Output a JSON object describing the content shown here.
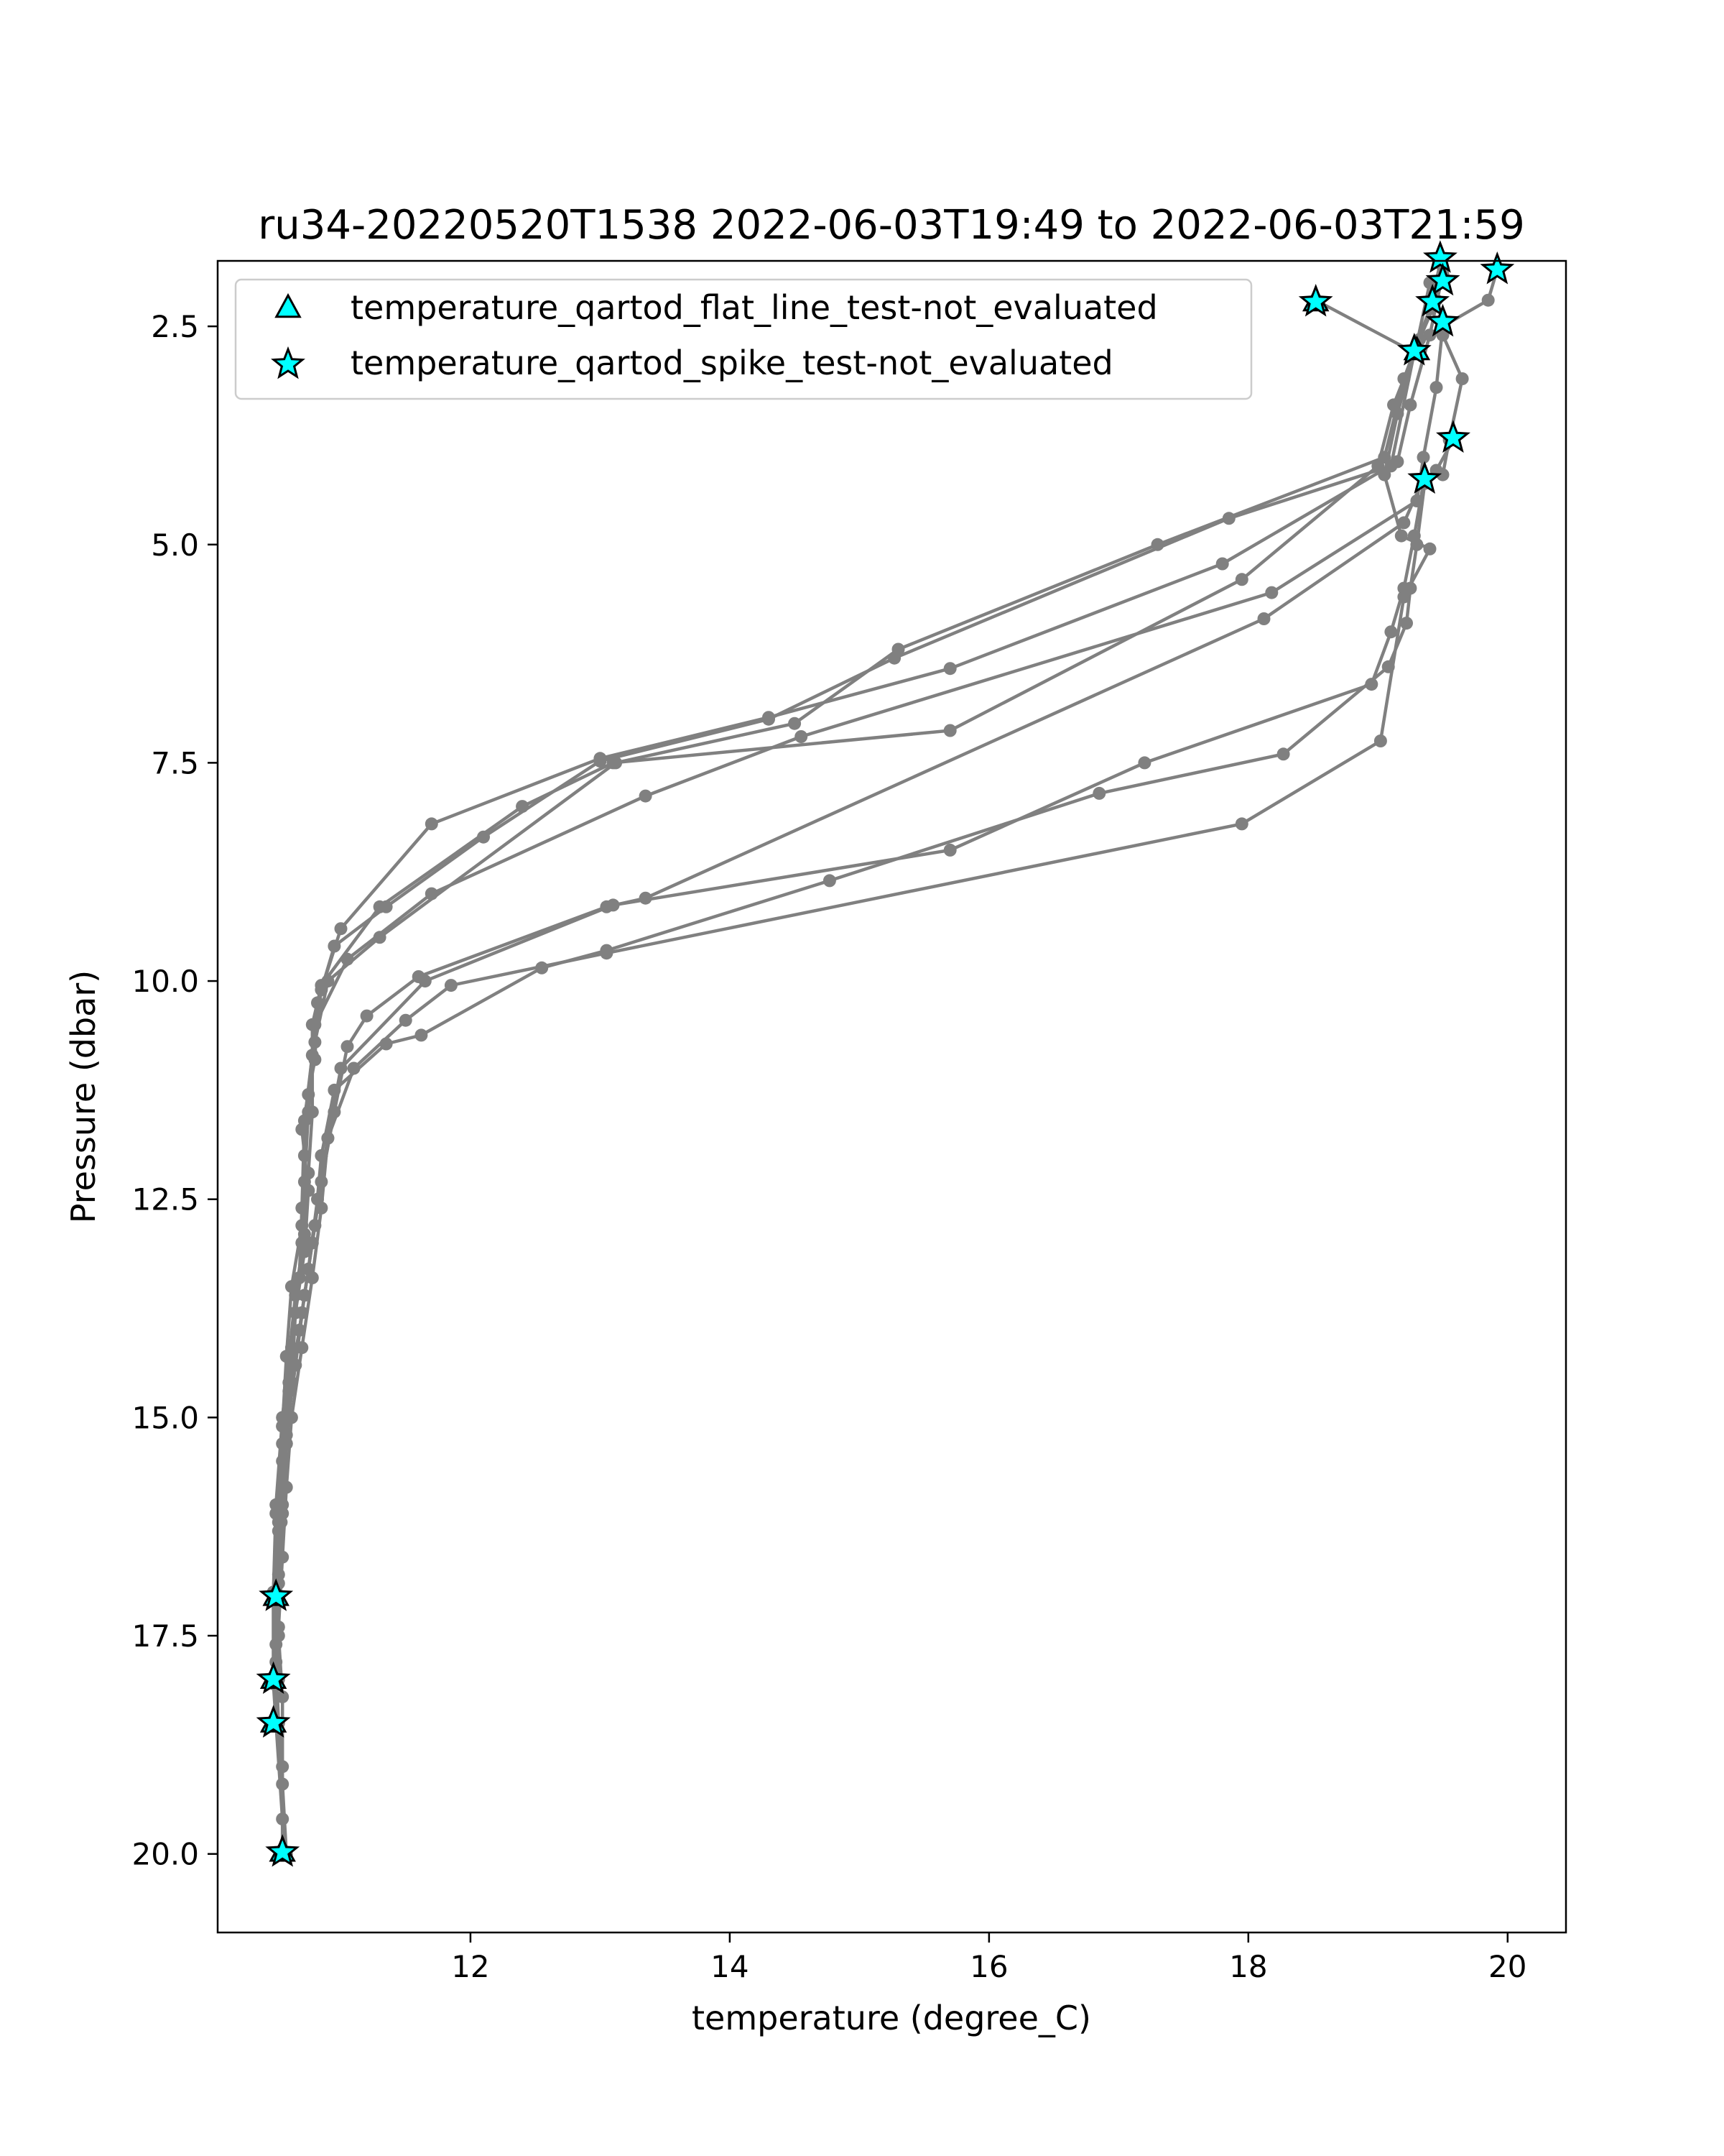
{
  "chart_data": {
    "type": "line",
    "title": "ru34-20220520T1538 2022-06-03T19:49 to 2022-06-03T21:59",
    "xlabel": "temperature (degree_C)",
    "ylabel": "Pressure (dbar)",
    "xlim": [
      10.05,
      20.45
    ],
    "ylim": [
      20.9,
      1.75
    ],
    "y_inverted": true,
    "xticks": [
      "12",
      "14",
      "16",
      "18",
      "20"
    ],
    "xtick_values": [
      12,
      14,
      16,
      18,
      20
    ],
    "yticks": [
      "2.5",
      "5.0",
      "7.5",
      "10.0",
      "12.5",
      "15.0",
      "17.5",
      "20.0"
    ],
    "ytick_values": [
      2.5,
      5.0,
      7.5,
      10.0,
      12.5,
      15.0,
      17.5,
      20.0
    ],
    "grid": false,
    "legend_position": "upper-left",
    "legend": [
      {
        "label": "temperature_qartod_flat_line_test-not_evaluated",
        "marker": "triangle"
      },
      {
        "label": "temperature_qartod_spike_test-not_evaluated",
        "marker": "star"
      }
    ],
    "colors": {
      "line": "#808080",
      "marker_fill": "#00FFFF",
      "marker_edge": "#000000"
    },
    "series": [
      {
        "values": [
          [
            18.52,
            2.2
          ],
          [
            19.28,
            2.8
          ],
          [
            19.1,
            4.1
          ],
          [
            17.85,
            4.7
          ],
          [
            15.27,
            6.3
          ],
          [
            14.3,
            7.0
          ],
          [
            13.0,
            7.48
          ],
          [
            12.1,
            8.35
          ],
          [
            11.35,
            9.15
          ],
          [
            10.95,
            9.6
          ],
          [
            10.82,
            10.25
          ],
          [
            10.8,
            10.9
          ],
          [
            10.7,
            11.7
          ],
          [
            10.75,
            12.4
          ],
          [
            10.72,
            13.1
          ],
          [
            10.65,
            13.8
          ],
          [
            10.62,
            14.6
          ],
          [
            10.58,
            15.3
          ],
          [
            10.54,
            16.2
          ],
          [
            10.5,
            17.1
          ]
        ]
      },
      {
        "values": [
          [
            19.5,
            1.9
          ],
          [
            19.4,
            2.6
          ],
          [
            19.25,
            3.4
          ],
          [
            19.15,
            4.05
          ],
          [
            17.8,
            5.22
          ],
          [
            15.7,
            6.42
          ],
          [
            14.3,
            6.98
          ],
          [
            13.0,
            7.45
          ],
          [
            11.7,
            8.2
          ],
          [
            11.0,
            9.4
          ],
          [
            10.85,
            10.1
          ],
          [
            10.78,
            10.85
          ],
          [
            10.72,
            11.6
          ],
          [
            10.7,
            12.6
          ],
          [
            10.68,
            13.4
          ],
          [
            10.62,
            14.2
          ],
          [
            10.55,
            15.1
          ],
          [
            10.5,
            16.1
          ],
          [
            10.48,
            17.1
          ],
          [
            10.48,
            18.05
          ]
        ]
      },
      {
        "values": [
          [
            19.48,
            1.72
          ],
          [
            19.45,
            2.2
          ],
          [
            19.32,
            2.65
          ],
          [
            19.12,
            3.4
          ],
          [
            19.0,
            4.1
          ],
          [
            17.95,
            5.4
          ],
          [
            15.7,
            7.13
          ],
          [
            13.1,
            7.5
          ],
          [
            12.4,
            8.0
          ],
          [
            11.3,
            9.15
          ],
          [
            10.85,
            10.05
          ],
          [
            10.78,
            10.5
          ],
          [
            10.78,
            11.5
          ],
          [
            10.75,
            12.2
          ],
          [
            10.72,
            12.9
          ],
          [
            10.65,
            13.6
          ],
          [
            10.6,
            14.3
          ],
          [
            10.55,
            15.0
          ],
          [
            10.5,
            16.0
          ],
          [
            10.48,
            17.0
          ],
          [
            10.48,
            18.0
          ]
        ]
      },
      {
        "values": [
          [
            19.92,
            1.85
          ],
          [
            19.85,
            2.2
          ],
          [
            19.5,
            2.5
          ],
          [
            19.45,
            3.2
          ],
          [
            19.35,
            4.0
          ],
          [
            19.3,
            4.5
          ],
          [
            18.18,
            5.55
          ],
          [
            14.55,
            7.2
          ],
          [
            13.35,
            7.88
          ],
          [
            11.7,
            9.0
          ],
          [
            11.05,
            9.75
          ],
          [
            10.8,
            10.5
          ],
          [
            10.75,
            11.3
          ],
          [
            10.72,
            12.0
          ],
          [
            10.7,
            12.8
          ],
          [
            10.62,
            13.5
          ],
          [
            10.58,
            14.3
          ],
          [
            10.55,
            15.1
          ],
          [
            10.52,
            16.1
          ],
          [
            10.5,
            17.1
          ],
          [
            10.48,
            18.05
          ],
          [
            10.5,
            18.5
          ]
        ]
      },
      {
        "values": [
          [
            19.5,
            2.6
          ],
          [
            19.65,
            3.1
          ],
          [
            19.55,
            3.8
          ],
          [
            19.5,
            4.2
          ],
          [
            19.35,
            4.25
          ],
          [
            19.2,
            4.75
          ],
          [
            18.12,
            5.85
          ],
          [
            13.35,
            9.05
          ],
          [
            13.05,
            9.15
          ],
          [
            11.6,
            9.95
          ],
          [
            11.2,
            10.4
          ],
          [
            11.05,
            10.75
          ],
          [
            10.95,
            11.5
          ],
          [
            10.85,
            12.3
          ],
          [
            10.78,
            13.0
          ],
          [
            10.7,
            13.8
          ],
          [
            10.62,
            14.6
          ],
          [
            10.58,
            15.3
          ],
          [
            10.55,
            16.1
          ],
          [
            10.52,
            16.9
          ],
          [
            10.5,
            17.6
          ],
          [
            10.5,
            18.5
          ],
          [
            10.55,
            19.6
          ],
          [
            10.55,
            20.0
          ]
        ]
      },
      {
        "values": [
          [
            19.58,
            3.8
          ],
          [
            19.45,
            4.15
          ],
          [
            19.35,
            4.3
          ],
          [
            19.28,
            4.9
          ],
          [
            19.2,
            5.5
          ],
          [
            19.1,
            6.0
          ],
          [
            18.95,
            6.6
          ],
          [
            17.2,
            7.5
          ],
          [
            15.7,
            8.5
          ],
          [
            13.1,
            9.13
          ],
          [
            11.65,
            10.0
          ],
          [
            11.0,
            11.0
          ],
          [
            10.9,
            11.8
          ],
          [
            10.82,
            12.5
          ],
          [
            10.75,
            13.3
          ],
          [
            10.68,
            14.0
          ],
          [
            10.6,
            14.7
          ],
          [
            10.55,
            15.5
          ],
          [
            10.52,
            16.3
          ],
          [
            10.5,
            17.1
          ],
          [
            10.5,
            17.8
          ],
          [
            10.52,
            18.5
          ],
          [
            10.55,
            19.2
          ],
          [
            10.58,
            20.0
          ]
        ]
      },
      {
        "values": [
          [
            19.36,
            4.3
          ],
          [
            19.3,
            5.0
          ],
          [
            19.25,
            5.5
          ],
          [
            19.22,
            5.9
          ],
          [
            19.08,
            6.4
          ],
          [
            18.27,
            7.4
          ],
          [
            16.85,
            7.85
          ],
          [
            14.77,
            8.85
          ],
          [
            13.05,
            9.65
          ],
          [
            12.55,
            9.85
          ],
          [
            11.62,
            10.62
          ],
          [
            11.35,
            10.72
          ],
          [
            10.95,
            11.25
          ],
          [
            10.85,
            12.0
          ],
          [
            10.8,
            12.8
          ],
          [
            10.72,
            13.6
          ],
          [
            10.65,
            14.4
          ],
          [
            10.58,
            15.2
          ],
          [
            10.55,
            16.0
          ],
          [
            10.52,
            16.8
          ],
          [
            10.52,
            17.5
          ],
          [
            10.55,
            18.2
          ],
          [
            10.55,
            19.0
          ],
          [
            10.55,
            20.0
          ]
        ]
      },
      {
        "values": [
          [
            19.48,
            1.78
          ],
          [
            19.4,
            2.3
          ],
          [
            19.2,
            3.1
          ],
          [
            19.05,
            4.0
          ],
          [
            17.3,
            5.0
          ],
          [
            15.3,
            6.2
          ],
          [
            14.5,
            7.05
          ],
          [
            13.12,
            7.5
          ],
          [
            11.3,
            9.5
          ],
          [
            10.9,
            10.0
          ],
          [
            10.8,
            10.7
          ],
          [
            10.75,
            11.5
          ],
          [
            10.72,
            12.3
          ],
          [
            10.7,
            13.0
          ],
          [
            10.65,
            13.8
          ],
          [
            10.6,
            14.6
          ],
          [
            10.55,
            15.3
          ],
          [
            10.52,
            16.2
          ],
          [
            10.5,
            17.0
          ]
        ]
      },
      {
        "values": [
          [
            19.4,
            2.0
          ],
          [
            19.3,
            2.7
          ],
          [
            19.15,
            3.5
          ],
          [
            19.05,
            4.2
          ],
          [
            19.18,
            4.9
          ],
          [
            19.4,
            5.05
          ],
          [
            19.2,
            5.6
          ],
          [
            19.02,
            7.25
          ],
          [
            17.95,
            8.2
          ],
          [
            13.05,
            9.68
          ],
          [
            11.85,
            10.05
          ],
          [
            11.5,
            10.45
          ],
          [
            11.1,
            11.0
          ],
          [
            10.9,
            11.8
          ],
          [
            10.85,
            12.6
          ],
          [
            10.78,
            13.4
          ],
          [
            10.7,
            14.2
          ],
          [
            10.62,
            15.0
          ],
          [
            10.58,
            15.8
          ],
          [
            10.55,
            16.6
          ],
          [
            10.52,
            17.4
          ],
          [
            10.52,
            18.0
          ]
        ]
      }
    ],
    "flat_line_not_evaluated": [
      [
        18.52,
        2.22
      ],
      [
        19.3,
        2.78
      ],
      [
        10.5,
        17.05
      ],
      [
        10.48,
        18.0
      ],
      [
        10.48,
        18.5
      ],
      [
        10.55,
        19.98
      ]
    ],
    "spike_not_evaluated": [
      [
        19.48,
        1.72
      ],
      [
        19.5,
        1.98
      ],
      [
        19.92,
        1.85
      ],
      [
        19.42,
        2.22
      ],
      [
        19.5,
        2.45
      ],
      [
        19.28,
        2.78
      ],
      [
        18.52,
        2.22
      ],
      [
        19.58,
        3.78
      ],
      [
        19.36,
        4.25
      ],
      [
        10.5,
        17.05
      ],
      [
        10.48,
        18.0
      ],
      [
        10.48,
        18.5
      ],
      [
        10.55,
        19.98
      ]
    ]
  }
}
